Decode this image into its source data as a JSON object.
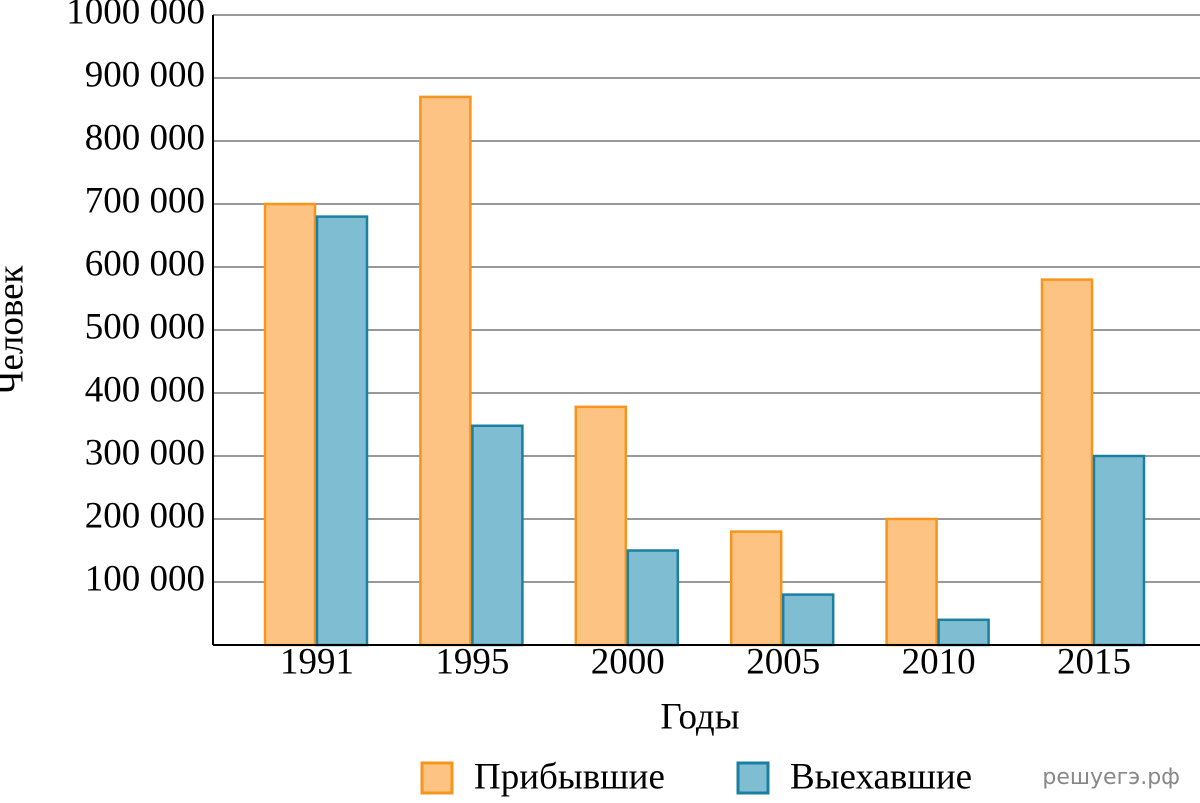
{
  "chart_data": {
    "type": "bar",
    "x_label": "Годы",
    "y_label": "Человек",
    "watermark": "решуегэ.рф",
    "categories": [
      "1991",
      "1995",
      "2000",
      "2005",
      "2010",
      "2015"
    ],
    "series": [
      {
        "name": "Прибывшие",
        "color": "#fdc383",
        "edge_color": "#f7941d",
        "values": [
          700000,
          870000,
          378000,
          180000,
          200000,
          580000
        ]
      },
      {
        "name": "Выехавшие",
        "color": "#7fbdd3",
        "edge_color": "#1a7fa0",
        "values": [
          680000,
          348000,
          150000,
          80000,
          40000,
          300000
        ]
      }
    ],
    "ylim": [
      0,
      1000000
    ],
    "yticks": [
      {
        "value": 100000,
        "label": "100 000"
      },
      {
        "value": 200000,
        "label": "200 000"
      },
      {
        "value": 300000,
        "label": "300 000"
      },
      {
        "value": 400000,
        "label": "400 000"
      },
      {
        "value": 500000,
        "label": "500 000"
      },
      {
        "value": 600000,
        "label": "600 000"
      },
      {
        "value": 700000,
        "label": "700 000"
      },
      {
        "value": 800000,
        "label": "800 000"
      },
      {
        "value": 900000,
        "label": "900 000"
      },
      {
        "value": 1000000,
        "label": "1000 000"
      }
    ],
    "grid": true,
    "legend": "bottom"
  }
}
